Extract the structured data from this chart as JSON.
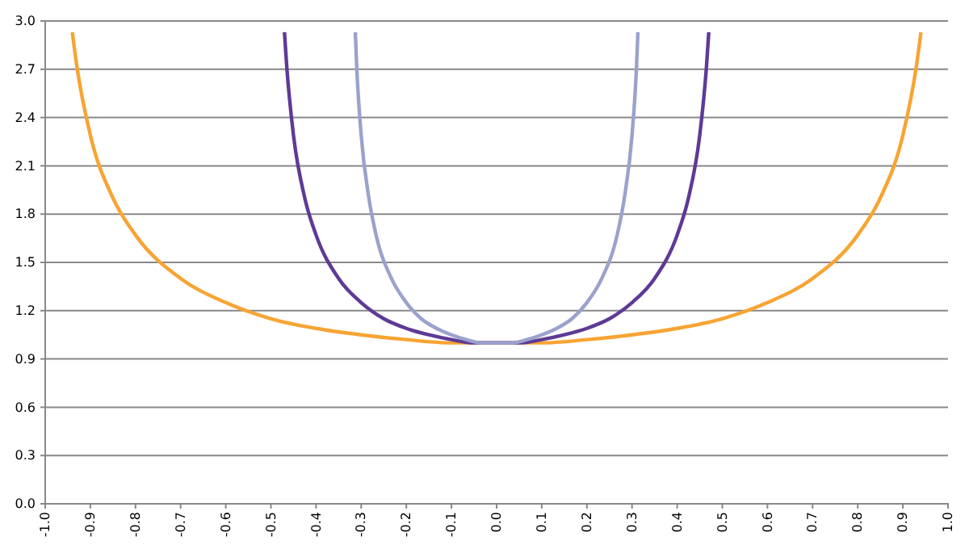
{
  "chart_data": {
    "type": "line",
    "xlim": [
      -1.0,
      1.0
    ],
    "ylim": [
      0.0,
      3.0
    ],
    "xticks": [
      {
        "value": -1.0,
        "label": "-1.0"
      },
      {
        "value": -0.9,
        "label": "-0.9"
      },
      {
        "value": -0.8,
        "label": "-0.8"
      },
      {
        "value": -0.7,
        "label": "-0.7"
      },
      {
        "value": -0.6,
        "label": "-0.6"
      },
      {
        "value": -0.5,
        "label": "-0.5"
      },
      {
        "value": -0.4,
        "label": "-0.4"
      },
      {
        "value": -0.3,
        "label": "-0.3"
      },
      {
        "value": -0.2,
        "label": "-0.2"
      },
      {
        "value": -0.1,
        "label": "-0.1"
      },
      {
        "value": 0,
        "label": "0.0"
      },
      {
        "value": 0.1,
        "label": "0.1"
      },
      {
        "value": 0.2,
        "label": "0.2"
      },
      {
        "value": 0.3,
        "label": "0.3"
      },
      {
        "value": 0.4,
        "label": "0.4"
      },
      {
        "value": 0.5,
        "label": "0.5"
      },
      {
        "value": 0.6,
        "label": "0.6"
      },
      {
        "value": 0.7,
        "label": "0.7"
      },
      {
        "value": 0.8,
        "label": "0.8"
      },
      {
        "value": 0.9,
        "label": "0.9"
      },
      {
        "value": 1.0,
        "label": "1.0"
      }
    ],
    "yticks": [
      {
        "value": 0,
        "label": "0.0"
      },
      {
        "value": 0.3,
        "label": "0.3"
      },
      {
        "value": 0.6,
        "label": "0.6"
      },
      {
        "value": 0.9,
        "label": "0.9"
      },
      {
        "value": 1.2,
        "label": "1.2"
      },
      {
        "value": 1.5,
        "label": "1.5"
      },
      {
        "value": 1.8,
        "label": "1.8"
      },
      {
        "value": 2.1,
        "label": "2.1"
      },
      {
        "value": 2.4,
        "label": "2.4"
      },
      {
        "value": 2.7,
        "label": "2.7"
      },
      {
        "value": 3.0,
        "label": "3.0"
      }
    ],
    "grid": "y",
    "line_style": "solid",
    "series": [
      {
        "color": "#f7a433",
        "x": [
          -0.94,
          -0.93,
          -0.9,
          -0.85,
          -0.8,
          -0.7,
          -0.6,
          -0.5,
          -0.4,
          -0.3,
          -0.2,
          -0.1,
          0.1,
          0.2,
          0.3,
          0.4,
          0.5,
          0.6,
          0.7,
          0.8,
          0.85,
          0.9,
          0.93,
          0.94
        ],
        "values": [
          2.93,
          2.72,
          2.29,
          1.9,
          1.67,
          1.4,
          1.25,
          1.15,
          1.09,
          1.05,
          1.02,
          1.0,
          1.0,
          1.02,
          1.05,
          1.09,
          1.15,
          1.25,
          1.4,
          1.67,
          1.9,
          2.29,
          2.72,
          2.93
        ]
      },
      {
        "color": "#5e3a96",
        "x": [
          -0.47,
          -0.465,
          -0.45,
          -0.425,
          -0.4,
          -0.35,
          -0.3,
          -0.25,
          -0.2,
          -0.15,
          -0.1,
          -0.05,
          0,
          0.05,
          0.1,
          0.15,
          0.2,
          0.25,
          0.3,
          0.35,
          0.4,
          0.425,
          0.45,
          0.465,
          0.47
        ],
        "values": [
          2.93,
          2.72,
          2.29,
          1.9,
          1.67,
          1.4,
          1.25,
          1.15,
          1.09,
          1.05,
          1.02,
          1.0,
          1.0,
          1.0,
          1.02,
          1.05,
          1.09,
          1.15,
          1.25,
          1.4,
          1.67,
          1.9,
          2.29,
          2.72,
          2.93
        ]
      },
      {
        "color": "#9aa2cc",
        "x": [
          -0.313,
          -0.31,
          -0.3,
          -0.283,
          -0.267,
          -0.233,
          -0.2,
          -0.167,
          -0.133,
          -0.1,
          -0.067,
          -0.033,
          0,
          0.033,
          0.067,
          0.1,
          0.133,
          0.167,
          0.2,
          0.233,
          0.267,
          0.283,
          0.3,
          0.31,
          0.313
        ],
        "values": [
          2.93,
          2.72,
          2.29,
          1.9,
          1.67,
          1.4,
          1.25,
          1.15,
          1.09,
          1.05,
          1.02,
          1.0,
          1.0,
          1.0,
          1.02,
          1.05,
          1.09,
          1.15,
          1.25,
          1.4,
          1.67,
          1.9,
          2.29,
          2.72,
          2.93
        ]
      }
    ]
  }
}
